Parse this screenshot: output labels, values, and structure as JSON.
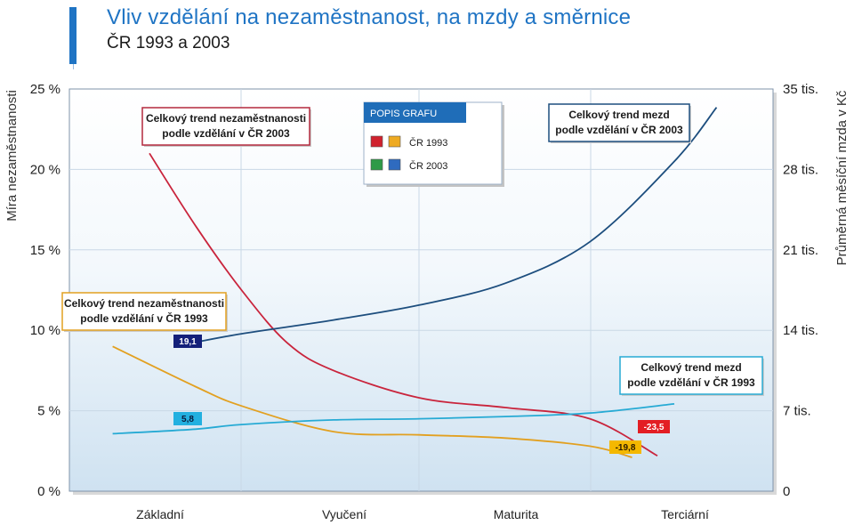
{
  "header": {
    "title": "Vliv vzdělání na nezaměstnanost, na mzdy a směrnice",
    "subtitle": "ČR 1993 a 2003"
  },
  "chart_data": {
    "type": "line",
    "title": "Vliv vzdělání na nezaměstnanost, na mzdy a směrnice",
    "subtitle": "ČR 1993 a 2003",
    "categories": [
      "Základní",
      "Vyučení",
      "Maturita",
      "Terciární"
    ],
    "y_left": {
      "label": "Míra nezaměstnanosti",
      "ticks": [
        "0 %",
        "5 %",
        "10 %",
        "15 %",
        "20 %",
        "25 %"
      ],
      "range": [
        0,
        25
      ]
    },
    "y_right": {
      "label": "Průměrná měsíční mzda v Kč",
      "ticks": [
        "0",
        "7 tis.",
        "14 tis.",
        "21 tis.",
        "28 tis.",
        "35 tis."
      ],
      "range": [
        0,
        35000
      ]
    },
    "grid": true,
    "legend": {
      "title": "POPIS GRAFU",
      "placement": "top-center",
      "entries": [
        {
          "label": "ČR 1993",
          "colors": [
            "#d0222e",
            "#eeaa22"
          ]
        },
        {
          "label": "ČR 2003",
          "colors": [
            "#2e9a47",
            "#2f6bbf"
          ]
        }
      ]
    },
    "series": [
      {
        "name": "Celkový trend nezaměstnanosti podle vzdělání v ČR 2003",
        "axis": "left",
        "color": "#c9243c",
        "x": [
          0,
          0.25,
          0.5,
          0.75,
          1,
          1.5,
          2,
          2.5,
          2.9
        ],
        "values": [
          21,
          16.5,
          12.5,
          9.2,
          7.5,
          5.8,
          5.2,
          4.5,
          2.2
        ]
      },
      {
        "name": "Celkový trend nezaměstnanosti podle vzdělání v ČR 1993",
        "axis": "left",
        "color": "#e2a020",
        "x": [
          -0.2,
          0.25,
          0.5,
          1,
          1.5,
          2,
          2.5,
          2.75
        ],
        "values": [
          9.0,
          6.5,
          5.3,
          3.7,
          3.5,
          3.3,
          2.8,
          2.1
        ]
      },
      {
        "name": "Celkový trend mezd podle vzdělání v ČR 2003",
        "axis": "right",
        "color": "#1d4e7e",
        "x": [
          0.2,
          0.5,
          1,
          1.5,
          2,
          2.5,
          3,
          3.25
        ],
        "values": [
          12800,
          13700,
          14900,
          16200,
          18100,
          21700,
          28700,
          33400
        ]
      },
      {
        "name": "Celkový trend mezd podle vzdělání v ČR 1993",
        "axis": "right",
        "color": "#26aad4",
        "x": [
          -0.2,
          0.25,
          0.5,
          1,
          1.5,
          2,
          2.5,
          3
        ],
        "values": [
          5000,
          5400,
          5800,
          6200,
          6300,
          6500,
          6800,
          7600
        ]
      }
    ],
    "annotations": [
      {
        "series": 0,
        "text": "Celkový trend nezaměstnanosti\npodle vzdělání v ČR 2003",
        "border": "#b3283d"
      },
      {
        "series": 1,
        "text": "Celkový trend nezaměstnanosti\npodle vzdělání v ČR 1993",
        "border": "#e2a020"
      },
      {
        "series": 2,
        "text": "Celkový trend mezd\npodle vzdělání v ČR 2003",
        "border": "#1d4e7e"
      },
      {
        "series": 3,
        "text": "Celkový trend mezd\npodle vzdělání v ČR 1993",
        "border": "#26aad4"
      }
    ],
    "slope_badges": [
      {
        "series": 2,
        "text": "19,1",
        "bg": "#13207a",
        "fg": "#ffffff"
      },
      {
        "series": 3,
        "text": "5,8",
        "bg": "#22b0e0",
        "fg": "#0a1a3a"
      },
      {
        "series": 0,
        "text": "-23,5",
        "bg": "#e31e24",
        "fg": "#ffffff"
      },
      {
        "series": 1,
        "text": "-19,8",
        "bg": "#f4b800",
        "fg": "#2a1a00"
      }
    ]
  }
}
